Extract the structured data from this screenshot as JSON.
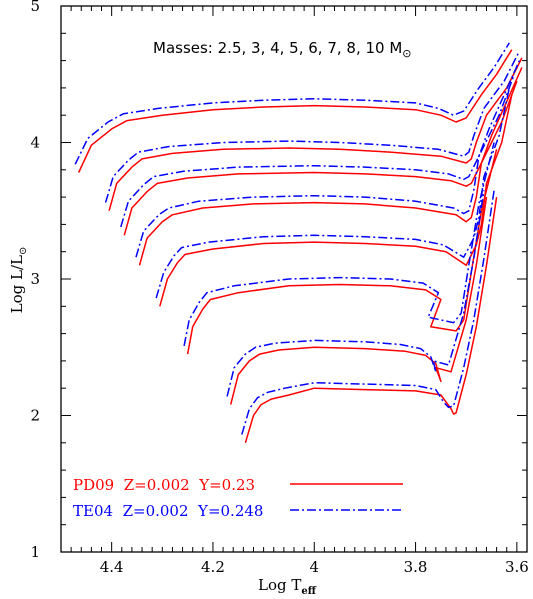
{
  "chart_data": {
    "type": "line",
    "xlabel": "Log T",
    "xlabel_sub": "eff",
    "ylabel": "Log L/L",
    "ylabel_sub": "⊙",
    "xlim": [
      4.5,
      3.58
    ],
    "ylim": [
      1,
      5
    ],
    "x_ticks": [
      "4.4",
      "4.2",
      "4",
      "3.8",
      "3.6"
    ],
    "y_ticks": [
      "1",
      "2",
      "3",
      "4",
      "5"
    ],
    "annotation": "Masses: 2.5, 3, 4, 5, 6, 7, 8, 10 M",
    "annotation_sub": "⊙",
    "legend_placement": "bottom-left",
    "series": [
      {
        "name": "PD09  Z=0.002  Y=0.23",
        "color": "#ff0000",
        "dash": "solid",
        "tracks": [
          {
            "mass": "2.5",
            "x": [
              4.136,
              4.12,
              4.105,
              4.085,
              4.05,
              4.0,
              3.9,
              3.8,
              3.75,
              3.73,
              3.725,
              3.72,
              3.7,
              3.68,
              3.66,
              3.64
            ],
            "y": [
              1.8,
              2.0,
              2.08,
              2.12,
              2.15,
              2.2,
              2.19,
              2.18,
              2.15,
              2.05,
              2.01,
              2.02,
              2.3,
              2.65,
              3.1,
              3.6
            ]
          },
          {
            "mass": "3",
            "x": [
              4.165,
              4.15,
              4.128,
              4.108,
              4.07,
              4.0,
              3.9,
              3.82,
              3.78,
              3.76,
              3.75,
              3.76,
              3.73,
              3.7,
              3.68,
              3.66
            ],
            "y": [
              2.08,
              2.3,
              2.4,
              2.45,
              2.48,
              2.5,
              2.49,
              2.47,
              2.44,
              2.38,
              2.25,
              2.35,
              2.32,
              2.7,
              3.1,
              3.6
            ]
          },
          {
            "mass": "4",
            "x": [
              4.25,
              4.24,
              4.22,
              4.205,
              4.15,
              4.05,
              3.95,
              3.85,
              3.78,
              3.75,
              3.77,
              3.72,
              3.705,
              3.69,
              3.67,
              3.64
            ],
            "y": [
              2.45,
              2.65,
              2.78,
              2.85,
              2.9,
              2.95,
              2.96,
              2.95,
              2.92,
              2.85,
              2.65,
              2.62,
              2.7,
              3.05,
              3.5,
              3.95
            ]
          },
          {
            "mass": "5",
            "x": [
              4.305,
              4.29,
              4.27,
              4.255,
              4.2,
              4.1,
              4.0,
              3.9,
              3.8,
              3.74,
              3.7,
              3.68,
              3.67,
              3.66,
              3.63,
              3.61
            ],
            "y": [
              2.8,
              3.0,
              3.12,
              3.18,
              3.22,
              3.26,
              3.27,
              3.26,
              3.24,
              3.2,
              3.1,
              3.25,
              3.4,
              3.7,
              4.0,
              4.35
            ]
          },
          {
            "mass": "6",
            "x": [
              4.345,
              4.33,
              4.3,
              4.28,
              4.22,
              4.12,
              4.0,
              3.9,
              3.8,
              3.72,
              3.7,
              3.69,
              3.68,
              3.67,
              3.63,
              3.6
            ],
            "y": [
              3.1,
              3.3,
              3.42,
              3.47,
              3.52,
              3.55,
              3.56,
              3.55,
              3.52,
              3.47,
              3.42,
              3.45,
              3.6,
              3.85,
              4.15,
              4.45
            ]
          },
          {
            "mass": "7",
            "x": [
              4.375,
              4.36,
              4.33,
              4.31,
              4.25,
              4.15,
              4.0,
              3.9,
              3.8,
              3.73,
              3.7,
              3.69,
              3.67,
              3.65,
              3.62,
              3.59
            ],
            "y": [
              3.32,
              3.52,
              3.64,
              3.7,
              3.74,
              3.77,
              3.78,
              3.77,
              3.75,
              3.72,
              3.68,
              3.7,
              3.85,
              4.05,
              4.3,
              4.55
            ]
          },
          {
            "mass": "8",
            "x": [
              4.405,
              4.39,
              4.36,
              4.34,
              4.28,
              4.18,
              4.05,
              3.95,
              3.85,
              3.75,
              3.7,
              3.69,
              3.68,
              3.66,
              3.62,
              3.59
            ],
            "y": [
              3.5,
              3.7,
              3.82,
              3.88,
              3.92,
              3.95,
              3.96,
              3.95,
              3.93,
              3.9,
              3.85,
              3.88,
              4.0,
              4.2,
              4.4,
              4.62
            ]
          },
          {
            "mass": "10",
            "x": [
              4.465,
              4.44,
              4.4,
              4.37,
              4.3,
              4.2,
              4.1,
              4.0,
              3.9,
              3.8,
              3.75,
              3.72,
              3.7,
              3.67,
              3.64,
              3.61
            ],
            "y": [
              3.78,
              3.98,
              4.1,
              4.16,
              4.2,
              4.24,
              4.26,
              4.27,
              4.26,
              4.24,
              4.2,
              4.15,
              4.18,
              4.35,
              4.5,
              4.68
            ]
          }
        ]
      },
      {
        "name": "TE04  Z=0.002  Y=0.248",
        "color": "#0000ff",
        "dash": "dashdot",
        "tracks": [
          {
            "mass": "2.5",
            "x": [
              4.143,
              4.128,
              4.112,
              4.092,
              4.058,
              4.0,
              3.9,
              3.8,
              3.76,
              3.745,
              3.735,
              3.725,
              3.705,
              3.685,
              3.665,
              3.645
            ],
            "y": [
              1.86,
              2.05,
              2.13,
              2.17,
              2.2,
              2.24,
              2.23,
              2.22,
              2.19,
              2.1,
              2.06,
              2.07,
              2.35,
              2.7,
              3.15,
              3.65
            ]
          },
          {
            "mass": "3",
            "x": [
              4.172,
              4.158,
              4.136,
              4.116,
              4.078,
              4.0,
              3.9,
              3.83,
              3.79,
              3.77,
              3.76,
              3.765,
              3.735,
              3.705,
              3.685,
              3.665
            ],
            "y": [
              2.14,
              2.35,
              2.45,
              2.5,
              2.53,
              2.55,
              2.54,
              2.52,
              2.49,
              2.43,
              2.32,
              2.4,
              2.37,
              2.75,
              3.15,
              3.65
            ]
          },
          {
            "mass": "4",
            "x": [
              4.257,
              4.247,
              4.227,
              4.212,
              4.158,
              4.05,
              3.95,
              3.85,
              3.785,
              3.755,
              3.775,
              3.725,
              3.71,
              3.695,
              3.675,
              3.645
            ],
            "y": [
              2.51,
              2.7,
              2.83,
              2.9,
              2.95,
              3.0,
              3.01,
              3.0,
              2.97,
              2.9,
              2.72,
              2.68,
              2.75,
              3.1,
              3.55,
              4.0
            ]
          },
          {
            "mass": "5",
            "x": [
              4.312,
              4.297,
              4.277,
              4.262,
              4.208,
              4.1,
              4.0,
              3.9,
              3.8,
              3.745,
              3.705,
              3.685,
              3.675,
              3.665,
              3.635,
              3.615
            ],
            "y": [
              2.86,
              3.05,
              3.17,
              3.23,
              3.27,
              3.31,
              3.32,
              3.31,
              3.29,
              3.25,
              3.16,
              3.3,
              3.45,
              3.75,
              4.05,
              4.4
            ]
          },
          {
            "mass": "6",
            "x": [
              4.352,
              4.337,
              4.307,
              4.287,
              4.228,
              4.12,
              4.0,
              3.9,
              3.8,
              3.725,
              3.705,
              3.695,
              3.685,
              3.675,
              3.635,
              3.605
            ],
            "y": [
              3.16,
              3.35,
              3.47,
              3.52,
              3.57,
              3.6,
              3.61,
              3.6,
              3.57,
              3.52,
              3.48,
              3.5,
              3.65,
              3.9,
              4.2,
              4.5
            ]
          },
          {
            "mass": "7",
            "x": [
              4.382,
              4.367,
              4.337,
              4.317,
              4.258,
              4.15,
              4.0,
              3.9,
              3.8,
              3.735,
              3.705,
              3.695,
              3.675,
              3.655,
              3.625,
              3.595
            ],
            "y": [
              3.38,
              3.57,
              3.69,
              3.75,
              3.79,
              3.82,
              3.83,
              3.82,
              3.8,
              3.77,
              3.73,
              3.75,
              3.9,
              4.1,
              4.35,
              4.6
            ]
          },
          {
            "mass": "8",
            "x": [
              4.412,
              4.397,
              4.367,
              4.347,
              4.288,
              4.18,
              4.05,
              3.95,
              3.85,
              3.755,
              3.705,
              3.695,
              3.685,
              3.665,
              3.625,
              3.595
            ],
            "y": [
              3.56,
              3.75,
              3.87,
              3.93,
              3.97,
              4.0,
              4.01,
              4.0,
              3.98,
              3.95,
              3.9,
              3.93,
              4.05,
              4.25,
              4.45,
              4.67
            ]
          },
          {
            "mass": "10",
            "x": [
              4.472,
              4.447,
              4.407,
              4.377,
              4.308,
              4.2,
              4.1,
              4.0,
              3.9,
              3.8,
              3.755,
              3.725,
              3.705,
              3.675,
              3.645,
              3.615
            ],
            "y": [
              3.84,
              4.03,
              4.15,
              4.21,
              4.25,
              4.29,
              4.31,
              4.32,
              4.31,
              4.29,
              4.25,
              4.2,
              4.23,
              4.4,
              4.55,
              4.73
            ]
          }
        ]
      }
    ]
  }
}
